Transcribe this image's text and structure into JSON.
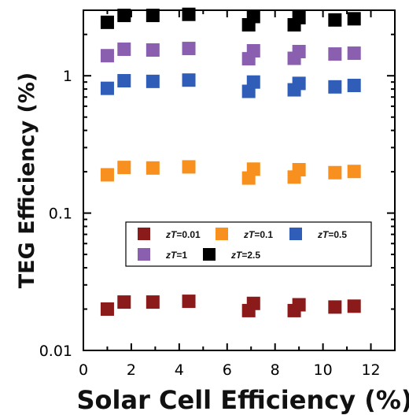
{
  "chart_data": {
    "type": "scatter",
    "title": "",
    "xlabel": "Solar Cell Efficiency (%)",
    "ylabel": "TEG Efficiency (%)",
    "xlim": [
      0,
      13
    ],
    "ylim": [
      0.01,
      3
    ],
    "y_scale": "log",
    "x_ticks": [
      0,
      2,
      4,
      6,
      8,
      10,
      12
    ],
    "y_ticks": [
      0.01,
      0.1,
      1
    ],
    "y_tick_labels": [
      "0.01",
      "0.1",
      "1"
    ],
    "grid": false,
    "legend_position": "center",
    "x": [
      1.0,
      1.7,
      2.9,
      4.4,
      6.9,
      7.1,
      8.8,
      9.0,
      10.5,
      11.3
    ],
    "series": [
      {
        "name": "zT=0.01",
        "name_parts": [
          "zT",
          "=0.01"
        ],
        "color": "#8b1a1a",
        "values": [
          0.02,
          0.0225,
          0.0225,
          0.0228,
          0.0195,
          0.022,
          0.0195,
          0.0215,
          0.0207,
          0.021
        ]
      },
      {
        "name": "zT=0.1",
        "name_parts": [
          "zT",
          "=0.1"
        ],
        "color": "#f7901e",
        "values": [
          0.19,
          0.215,
          0.213,
          0.217,
          0.18,
          0.209,
          0.183,
          0.207,
          0.197,
          0.201
        ]
      },
      {
        "name": "zT=0.5",
        "name_parts": [
          "zT",
          "=0.5"
        ],
        "color": "#2f5db8",
        "values": [
          0.81,
          0.92,
          0.91,
          0.93,
          0.77,
          0.9,
          0.79,
          0.88,
          0.83,
          0.85
        ]
      },
      {
        "name": "zT=1",
        "name_parts": [
          "zT",
          "=1"
        ],
        "color": "#8a5fb0",
        "values": [
          1.4,
          1.56,
          1.54,
          1.58,
          1.33,
          1.52,
          1.34,
          1.5,
          1.44,
          1.46
        ]
      },
      {
        "name": "zT=2.5",
        "name_parts": [
          "zT",
          "=2.5"
        ],
        "color": "#000000",
        "values": [
          2.45,
          2.75,
          2.75,
          2.8,
          2.35,
          2.7,
          2.35,
          2.65,
          2.55,
          2.6
        ]
      }
    ]
  }
}
